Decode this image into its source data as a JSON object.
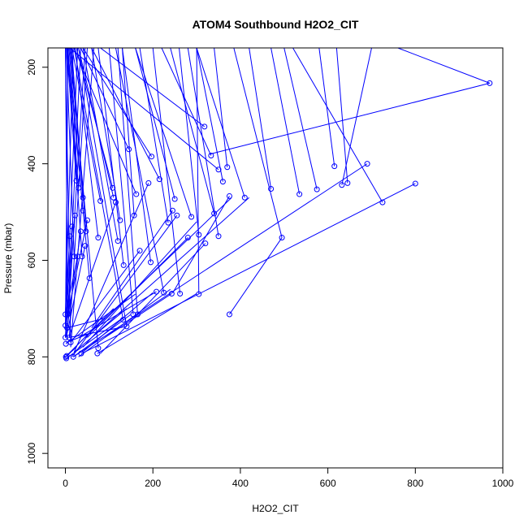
{
  "chart_data": {
    "type": "line",
    "title": "ATOM4 Southbound H2O2_CIT",
    "xlabel": "H2O2_CIT",
    "ylabel": "Pressure (mbar)",
    "xlim": [
      -40,
      1000
    ],
    "ylim": [
      1030,
      160
    ],
    "y_reversed": true,
    "grid": false,
    "series_color": "#0000ff",
    "xticks": [
      0,
      200,
      400,
      600,
      800,
      1000
    ],
    "yticks": [
      200,
      400,
      600,
      800,
      1000
    ],
    "markers": [
      {
        "x": 970,
        "y": 233
      },
      {
        "x": 800,
        "y": 441
      },
      {
        "x": 725,
        "y": 480
      },
      {
        "x": 690,
        "y": 400
      },
      {
        "x": 645,
        "y": 440
      },
      {
        "x": 632,
        "y": 444
      },
      {
        "x": 615,
        "y": 405
      },
      {
        "x": 575,
        "y": 453
      },
      {
        "x": 535,
        "y": 463
      },
      {
        "x": 495,
        "y": 553
      },
      {
        "x": 470,
        "y": 452
      },
      {
        "x": 410,
        "y": 470
      },
      {
        "x": 375,
        "y": 712
      },
      {
        "x": 375,
        "y": 467
      },
      {
        "x": 370,
        "y": 407
      },
      {
        "x": 360,
        "y": 437
      },
      {
        "x": 350,
        "y": 412
      },
      {
        "x": 350,
        "y": 550
      },
      {
        "x": 340,
        "y": 503
      },
      {
        "x": 333,
        "y": 383
      },
      {
        "x": 320,
        "y": 565
      },
      {
        "x": 318,
        "y": 323
      },
      {
        "x": 305,
        "y": 670
      },
      {
        "x": 305,
        "y": 547
      },
      {
        "x": 288,
        "y": 510
      },
      {
        "x": 280,
        "y": 553
      },
      {
        "x": 262,
        "y": 669
      },
      {
        "x": 255,
        "y": 507
      },
      {
        "x": 250,
        "y": 473
      },
      {
        "x": 245,
        "y": 497
      },
      {
        "x": 243,
        "y": 669
      },
      {
        "x": 235,
        "y": 522
      },
      {
        "x": 225,
        "y": 667
      },
      {
        "x": 215,
        "y": 432
      },
      {
        "x": 208,
        "y": 665
      },
      {
        "x": 197,
        "y": 385
      },
      {
        "x": 195,
        "y": 604
      },
      {
        "x": 190,
        "y": 440
      },
      {
        "x": 170,
        "y": 580
      },
      {
        "x": 165,
        "y": 712
      },
      {
        "x": 162,
        "y": 463
      },
      {
        "x": 157,
        "y": 507
      },
      {
        "x": 155,
        "y": 712
      },
      {
        "x": 145,
        "y": 370
      },
      {
        "x": 140,
        "y": 737
      },
      {
        "x": 133,
        "y": 610
      },
      {
        "x": 132,
        "y": 723
      },
      {
        "x": 125,
        "y": 517
      },
      {
        "x": 120,
        "y": 560
      },
      {
        "x": 115,
        "y": 480
      },
      {
        "x": 110,
        "y": 470
      },
      {
        "x": 108,
        "y": 450
      },
      {
        "x": 80,
        "y": 477
      },
      {
        "x": 75,
        "y": 553
      },
      {
        "x": 75,
        "y": 782
      },
      {
        "x": 73,
        "y": 793
      },
      {
        "x": 55,
        "y": 637
      },
      {
        "x": 50,
        "y": 517
      },
      {
        "x": 47,
        "y": 540
      },
      {
        "x": 45,
        "y": 570
      },
      {
        "x": 40,
        "y": 470
      },
      {
        "x": 40,
        "y": 497
      },
      {
        "x": 38,
        "y": 592
      },
      {
        "x": 36,
        "y": 793
      },
      {
        "x": 35,
        "y": 540
      },
      {
        "x": 30,
        "y": 450
      },
      {
        "x": 28,
        "y": 592
      },
      {
        "x": 25,
        "y": 435
      },
      {
        "x": 22,
        "y": 507
      },
      {
        "x": 20,
        "y": 592
      },
      {
        "x": 18,
        "y": 800
      },
      {
        "x": 15,
        "y": 530
      },
      {
        "x": 12,
        "y": 770
      },
      {
        "x": 10,
        "y": 550
      },
      {
        "x": 8,
        "y": 760
      },
      {
        "x": 5,
        "y": 712
      },
      {
        "x": 4,
        "y": 740
      },
      {
        "x": 3,
        "y": 798
      },
      {
        "x": 2,
        "y": 803
      },
      {
        "x": 1,
        "y": 773
      },
      {
        "x": 0,
        "y": 735
      },
      {
        "x": 0,
        "y": 760
      },
      {
        "x": 0,
        "y": 712
      },
      {
        "x": 1,
        "y": 800
      }
    ],
    "segments": [
      [
        [
          970,
          233
        ],
        [
          760,
          160
        ]
      ],
      [
        [
          970,
          233
        ],
        [
          330,
          380
        ]
      ],
      [
        [
          800,
          441
        ],
        [
          40,
          792
        ]
      ],
      [
        [
          725,
          480
        ],
        [
          520,
          160
        ]
      ],
      [
        [
          690,
          400
        ],
        [
          18,
          800
        ]
      ],
      [
        [
          645,
          440
        ],
        [
          620,
          160
        ]
      ],
      [
        [
          632,
          444
        ],
        [
          700,
          160
        ]
      ],
      [
        [
          615,
          405
        ],
        [
          580,
          160
        ]
      ],
      [
        [
          575,
          453
        ],
        [
          500,
          160
        ]
      ],
      [
        [
          535,
          463
        ],
        [
          470,
          160
        ]
      ],
      [
        [
          495,
          553
        ],
        [
          385,
          160
        ]
      ],
      [
        [
          495,
          553
        ],
        [
          375,
          712
        ]
      ],
      [
        [
          470,
          452
        ],
        [
          420,
          160
        ]
      ],
      [
        [
          410,
          470
        ],
        [
          300,
          160
        ]
      ],
      [
        [
          375,
          467
        ],
        [
          245,
          668
        ]
      ],
      [
        [
          370,
          407
        ],
        [
          340,
          160
        ]
      ],
      [
        [
          360,
          437
        ],
        [
          300,
          160
        ]
      ],
      [
        [
          350,
          412
        ],
        [
          10,
          160
        ]
      ],
      [
        [
          350,
          550
        ],
        [
          280,
          160
        ]
      ],
      [
        [
          340,
          503
        ],
        [
          240,
          160
        ]
      ],
      [
        [
          333,
          383
        ],
        [
          220,
          160
        ]
      ],
      [
        [
          320,
          565
        ],
        [
          80,
          793
        ]
      ],
      [
        [
          318,
          323
        ],
        [
          80,
          160
        ]
      ],
      [
        [
          305,
          670
        ],
        [
          300,
          160
        ]
      ],
      [
        [
          305,
          547
        ],
        [
          260,
          160
        ]
      ],
      [
        [
          288,
          510
        ],
        [
          160,
          160
        ]
      ],
      [
        [
          280,
          553
        ],
        [
          50,
          760
        ]
      ],
      [
        [
          262,
          669
        ],
        [
          200,
          160
        ]
      ],
      [
        [
          255,
          507
        ],
        [
          15,
          800
        ]
      ],
      [
        [
          250,
          473
        ],
        [
          160,
          160
        ]
      ],
      [
        [
          245,
          497
        ],
        [
          60,
          740
        ]
      ],
      [
        [
          243,
          669
        ],
        [
          90,
          760
        ]
      ],
      [
        [
          235,
          522
        ],
        [
          170,
          160
        ]
      ],
      [
        [
          225,
          667
        ],
        [
          115,
          160
        ]
      ],
      [
        [
          215,
          432
        ],
        [
          60,
          160
        ]
      ],
      [
        [
          208,
          665
        ],
        [
          30,
          760
        ]
      ],
      [
        [
          197,
          385
        ],
        [
          40,
          160
        ]
      ],
      [
        [
          195,
          604
        ],
        [
          130,
          160
        ]
      ],
      [
        [
          190,
          440
        ],
        [
          20,
          790
        ]
      ],
      [
        [
          170,
          580
        ],
        [
          12,
          770
        ]
      ],
      [
        [
          165,
          712
        ],
        [
          120,
          160
        ]
      ],
      [
        [
          162,
          463
        ],
        [
          20,
          160
        ]
      ],
      [
        [
          157,
          507
        ],
        [
          130,
          160
        ]
      ],
      [
        [
          155,
          712
        ],
        [
          100,
          160
        ]
      ],
      [
        [
          145,
          370
        ],
        [
          35,
          160
        ]
      ],
      [
        [
          140,
          737
        ],
        [
          30,
          160
        ]
      ],
      [
        [
          133,
          610
        ],
        [
          75,
          160
        ]
      ],
      [
        [
          132,
          723
        ],
        [
          20,
          160
        ]
      ],
      [
        [
          125,
          517
        ],
        [
          60,
          160
        ]
      ],
      [
        [
          120,
          560
        ],
        [
          40,
          160
        ]
      ],
      [
        [
          115,
          480
        ],
        [
          8,
          760
        ]
      ],
      [
        [
          110,
          470
        ],
        [
          30,
          160
        ]
      ],
      [
        [
          108,
          450
        ],
        [
          25,
          160
        ]
      ],
      [
        [
          80,
          477
        ],
        [
          15,
          160
        ]
      ],
      [
        [
          75,
          553
        ],
        [
          22,
          160
        ]
      ],
      [
        [
          75,
          782
        ],
        [
          10,
          160
        ]
      ],
      [
        [
          73,
          793
        ],
        [
          300,
          669
        ]
      ],
      [
        [
          55,
          637
        ],
        [
          5,
          160
        ]
      ],
      [
        [
          50,
          517
        ],
        [
          0,
          735
        ]
      ],
      [
        [
          47,
          540
        ],
        [
          14,
          160
        ]
      ],
      [
        [
          45,
          570
        ],
        [
          2,
          760
        ]
      ],
      [
        [
          40,
          470
        ],
        [
          12,
          160
        ]
      ],
      [
        [
          40,
          497
        ],
        [
          8,
          160
        ]
      ],
      [
        [
          38,
          592
        ],
        [
          6,
          160
        ]
      ],
      [
        [
          36,
          793
        ],
        [
          200,
          667
        ]
      ],
      [
        [
          35,
          540
        ],
        [
          1,
          760
        ]
      ],
      [
        [
          30,
          450
        ],
        [
          4,
          160
        ]
      ],
      [
        [
          28,
          592
        ],
        [
          0,
          712
        ]
      ],
      [
        [
          25,
          435
        ],
        [
          3,
          160
        ]
      ],
      [
        [
          22,
          507
        ],
        [
          0,
          760
        ]
      ],
      [
        [
          20,
          592
        ],
        [
          2,
          160
        ]
      ],
      [
        [
          18,
          800
        ],
        [
          150,
          712
        ]
      ],
      [
        [
          15,
          530
        ],
        [
          1,
          735
        ]
      ],
      [
        [
          12,
          770
        ],
        [
          0,
          160
        ]
      ],
      [
        [
          10,
          550
        ],
        [
          0,
          712
        ]
      ],
      [
        [
          8,
          760
        ],
        [
          140,
          737
        ]
      ],
      [
        [
          5,
          712
        ],
        [
          0,
          160
        ]
      ],
      [
        [
          4,
          740
        ],
        [
          90,
          720
        ]
      ],
      [
        [
          3,
          798
        ],
        [
          25,
          780
        ]
      ],
      [
        [
          2,
          803
        ],
        [
          130,
          720
        ]
      ],
      [
        [
          1,
          773
        ],
        [
          160,
          670
        ]
      ],
      [
        [
          0,
          735
        ],
        [
          6,
          160
        ]
      ],
      [
        [
          0,
          760
        ],
        [
          28,
          160
        ]
      ],
      [
        [
          0,
          712
        ],
        [
          18,
          160
        ]
      ],
      [
        [
          1,
          800
        ],
        [
          55,
          750
        ]
      ],
      [
        [
          0,
          800
        ],
        [
          110,
          700
        ]
      ],
      [
        [
          2,
          770
        ],
        [
          60,
          750
        ]
      ],
      [
        [
          5,
          740
        ],
        [
          45,
          160
        ]
      ],
      [
        [
          6,
          720
        ],
        [
          35,
          160
        ]
      ],
      [
        [
          9,
          760
        ],
        [
          50,
          160
        ]
      ],
      [
        [
          12,
          780
        ],
        [
          65,
          160
        ]
      ],
      [
        [
          20,
          790
        ],
        [
          140,
          700
        ]
      ],
      [
        [
          30,
          800
        ],
        [
          240,
          660
        ]
      ],
      [
        [
          40,
          780
        ],
        [
          300,
          520
        ]
      ],
      [
        [
          45,
          760
        ],
        [
          380,
          470
        ]
      ],
      [
        [
          60,
          760
        ],
        [
          420,
          470
        ]
      ]
    ]
  }
}
